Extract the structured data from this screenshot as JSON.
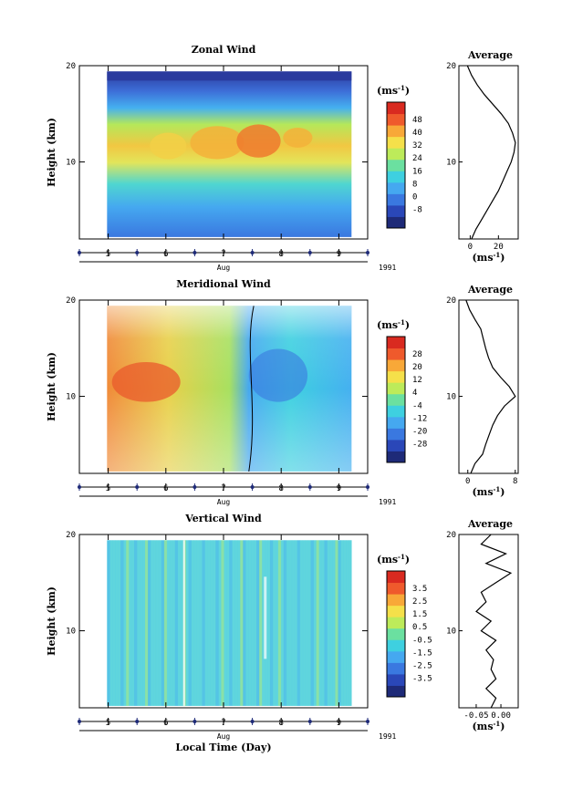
{
  "chart_data": [
    {
      "type": "heatmap",
      "title": "Zonal Wind",
      "ylabel": "Height (km)",
      "ylim": [
        2,
        20
      ],
      "yticks": [
        "20",
        "10"
      ],
      "xlim": [
        4.5,
        9.5
      ],
      "xticks": [
        "5",
        "6",
        "7",
        "8",
        "9"
      ],
      "xlabel": "Aug",
      "year": "1991",
      "colorbar": {
        "unit": "(ms",
        "unit_sup": "-1",
        "unit_close": ")",
        "ticks": [
          "48",
          "40",
          "32",
          "24",
          "16",
          "8",
          "0",
          "-8"
        ],
        "colors": [
          "#1e2a78",
          "#2a47b8",
          "#3a78e0",
          "#45a8f0",
          "#3ed0e0",
          "#6be0a0",
          "#bdeb5a",
          "#f5e04a",
          "#f8a838",
          "#ef5a2c",
          "#d92a20"
        ]
      },
      "description": "westward-to-eastward wind peaking ~40 ms-1 near 10-12 km; weak/negative above 17 km",
      "average": {
        "title": "Average",
        "xticks": [
          "0",
          "20"
        ],
        "xunit": "(ms",
        "xunit_sup": "-1",
        "xunit_close": ")",
        "xlim": [
          -8,
          34
        ],
        "yticks": [
          "20",
          "10"
        ],
        "heights": [
          2,
          3,
          4,
          5,
          6,
          7,
          8,
          9,
          10,
          11,
          12,
          13,
          14,
          15,
          16,
          17,
          18,
          19,
          20
        ],
        "values": [
          1,
          4,
          8,
          12,
          16,
          20,
          23,
          26,
          29,
          31,
          32,
          30,
          27,
          22,
          16,
          10,
          5,
          1,
          -2
        ]
      }
    },
    {
      "type": "heatmap",
      "title": "Meridional Wind",
      "ylabel": "Height (km)",
      "ylim": [
        2,
        20
      ],
      "yticks": [
        "20",
        "10"
      ],
      "xlim": [
        4.5,
        9.5
      ],
      "xticks": [
        "5",
        "6",
        "7",
        "8",
        "9"
      ],
      "xlabel": "Aug",
      "year": "1991",
      "colorbar": {
        "unit": "(ms",
        "unit_sup": "-1",
        "unit_close": ")",
        "ticks": [
          "28",
          "20",
          "12",
          "4",
          "-4",
          "-12",
          "-20",
          "-28"
        ],
        "colors": [
          "#1e2a78",
          "#2a47b8",
          "#3a78e0",
          "#45a8f0",
          "#3ed0e0",
          "#6be0a0",
          "#bdeb5a",
          "#f5e04a",
          "#f8a838",
          "#ef5a2c",
          "#d92a20"
        ]
      },
      "description": "northward wind ~20 ms-1 near 10-12 km on Aug 5-6, changing to southward after Aug 7.5",
      "average": {
        "title": "Average",
        "xticks": [
          "0",
          "8"
        ],
        "xunit": "(ms",
        "xunit_sup": "-1",
        "xunit_close": ")",
        "xlim": [
          -1.5,
          8.5
        ],
        "yticks": [
          "20",
          "10"
        ],
        "heights": [
          2,
          3,
          4,
          5,
          6,
          7,
          8,
          9,
          10,
          11,
          12,
          13,
          14,
          15,
          16,
          17,
          18,
          19,
          20
        ],
        "values": [
          0.5,
          1.2,
          2.5,
          3.0,
          3.6,
          4.2,
          5.0,
          6.2,
          8.0,
          7.0,
          5.5,
          4.2,
          3.5,
          3.0,
          2.6,
          2.2,
          1.2,
          0.3,
          -0.3
        ]
      }
    },
    {
      "type": "heatmap",
      "title": "Vertical Wind",
      "ylabel": "Height (km)",
      "ylim": [
        2,
        20
      ],
      "yticks": [
        "20",
        "10"
      ],
      "xlim": [
        4.5,
        9.5
      ],
      "xticks": [
        "5",
        "6",
        "7",
        "8",
        "9"
      ],
      "xlabel": "Aug",
      "year": "1991",
      "axis_title": "Local Time (Day)",
      "colorbar": {
        "unit": "(ms",
        "unit_sup": "-1",
        "unit_close": ")",
        "ticks": [
          "3.5",
          "2.5",
          "1.5",
          "0.5",
          "-0.5",
          "-1.5",
          "-2.5",
          "-3.5"
        ],
        "colors": [
          "#1e2a78",
          "#2a47b8",
          "#3a78e0",
          "#45a8f0",
          "#3ed0e0",
          "#6be0a0",
          "#bdeb5a",
          "#f5e04a",
          "#f8a838",
          "#ef5a2c",
          "#d92a20"
        ]
      },
      "description": "near-zero vertical wind with small fluctuations",
      "average": {
        "title": "Average",
        "xticks": [
          "-0.05",
          "0.00"
        ],
        "xunit": "(ms",
        "xunit_sup": "-1",
        "xunit_close": ")",
        "xlim": [
          -0.085,
          0.035
        ],
        "yticks": [
          "20",
          "10"
        ],
        "heights": [
          2,
          3,
          4,
          5,
          6,
          7,
          8,
          9,
          10,
          11,
          12,
          13,
          14,
          15,
          16,
          17,
          18,
          19,
          20
        ],
        "values": [
          -0.02,
          -0.01,
          -0.03,
          -0.01,
          -0.02,
          -0.015,
          -0.03,
          -0.01,
          -0.04,
          -0.02,
          -0.05,
          -0.03,
          -0.04,
          -0.01,
          0.02,
          -0.03,
          0.01,
          -0.04,
          -0.02
        ]
      }
    }
  ]
}
